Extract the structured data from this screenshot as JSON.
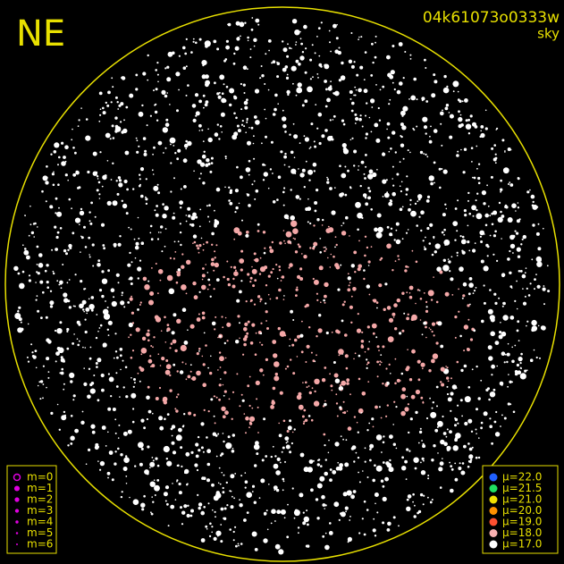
{
  "header": {
    "direction": "NE",
    "frame_id": "04k61073o0333w",
    "view": "sky"
  },
  "magnitude_legend": {
    "items": [
      "m=0",
      "m=1",
      "m=2",
      "m=3",
      "m=4",
      "m=5",
      "m=6"
    ]
  },
  "mu_legend": {
    "items": [
      {
        "label": "μ=22.0",
        "color": "#2060ff"
      },
      {
        "label": "μ=21.5",
        "color": "#20e060"
      },
      {
        "label": "μ=21.0",
        "color": "#f0e000"
      },
      {
        "label": "μ=20.0",
        "color": "#ff9000"
      },
      {
        "label": "μ=19.0",
        "color": "#ff5030"
      },
      {
        "label": "μ=18.0",
        "color": "#f8b0b0"
      },
      {
        "label": "μ=17.0",
        "color": "#ffffff"
      }
    ]
  }
}
